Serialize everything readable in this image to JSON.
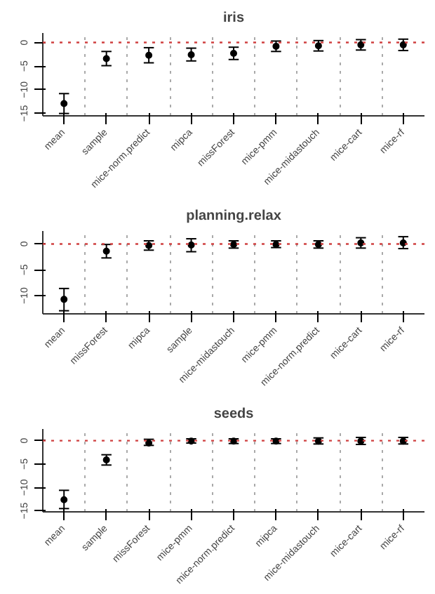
{
  "chart_data": [
    {
      "type": "scatter",
      "title": "iris",
      "categories": [
        "mean",
        "sample",
        "mice-norm.predict",
        "mipca",
        "missForest",
        "mice-pmm",
        "mice-midastouch",
        "mice-cart",
        "mice-rf"
      ],
      "color": "#000000",
      "marker": "circle",
      "values": [
        -12.9,
        -3.4,
        -2.7,
        -2.6,
        -2.3,
        -0.8,
        -0.7,
        -0.5,
        -0.5
      ],
      "errors": [
        [
          -15,
          -10.8
        ],
        [
          -4.9,
          -1.9
        ],
        [
          -4.3,
          -1.1
        ],
        [
          -3.9,
          -1.2
        ],
        [
          -3.6,
          -1.0
        ],
        [
          -1.9,
          0.3
        ],
        [
          -1.8,
          0.4
        ],
        [
          -1.6,
          0.6
        ],
        [
          -1.7,
          0.7
        ]
      ],
      "ylim": [
        -15.5,
        2
      ],
      "yticks": [
        -15,
        -10,
        -5,
        0
      ],
      "ref_lines": [
        {
          "axis": "y",
          "value": 0,
          "color": "#d04040",
          "line_style": "dotted"
        }
      ]
    },
    {
      "type": "scatter",
      "title": "planning.relax",
      "categories": [
        "mean",
        "missForest",
        "mipca",
        "sample",
        "mice-midastouch",
        "mice-pmm",
        "mice-norm.predict",
        "mice-cart",
        "mice-rf"
      ],
      "color": "#000000",
      "marker": "circle",
      "values": [
        -10.7,
        -1.4,
        -0.3,
        -0.2,
        -0.1,
        -0.1,
        -0.1,
        0.2,
        0.2
      ],
      "errors": [
        [
          -12.9,
          -8.6
        ],
        [
          -2.7,
          -0.1
        ],
        [
          -1.2,
          0.6
        ],
        [
          -1.5,
          1.0
        ],
        [
          -0.8,
          0.6
        ],
        [
          -0.7,
          0.6
        ],
        [
          -0.8,
          0.6
        ],
        [
          -0.8,
          1.2
        ],
        [
          -0.9,
          1.4
        ]
      ],
      "ylim": [
        -13.5,
        2.5
      ],
      "yticks": [
        -10,
        -5,
        0
      ],
      "ref_lines": [
        {
          "axis": "y",
          "value": 0,
          "color": "#d04040",
          "line_style": "dotted"
        }
      ]
    },
    {
      "type": "scatter",
      "title": "seeds",
      "categories": [
        "mean",
        "sample",
        "missForest",
        "mice-pmm",
        "mice-norm.predict",
        "mipca",
        "mice-midastouch",
        "mice-cart",
        "mice-rf"
      ],
      "color": "#000000",
      "marker": "circle",
      "values": [
        -12.6,
        -4.1,
        -0.5,
        -0.1,
        -0.1,
        -0.1,
        -0.1,
        -0.1,
        -0.1
      ],
      "errors": [
        [
          -14.5,
          -10.6
        ],
        [
          -5.2,
          -3.0
        ],
        [
          -1.0,
          0.3
        ],
        [
          -0.5,
          0.4
        ],
        [
          -0.6,
          0.4
        ],
        [
          -0.6,
          0.4
        ],
        [
          -0.7,
          0.6
        ],
        [
          -0.8,
          0.7
        ],
        [
          -0.7,
          0.7
        ]
      ],
      "ylim": [
        -15.2,
        2.5
      ],
      "yticks": [
        -15,
        -10,
        -5,
        0
      ],
      "ref_lines": [
        {
          "axis": "y",
          "value": 0,
          "color": "#d04040",
          "line_style": "dotted"
        }
      ]
    }
  ]
}
